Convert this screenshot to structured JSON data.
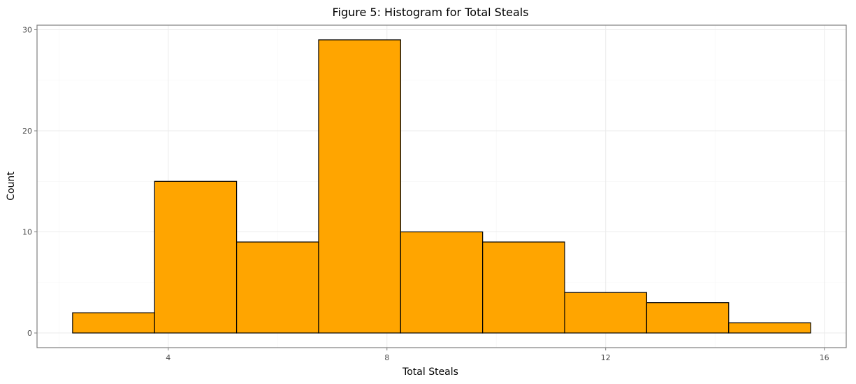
{
  "chart_data": {
    "type": "bar",
    "title": "Figure 5: Histogram for Total Steals",
    "xlabel": "Total Steals",
    "ylabel": "Count",
    "bar_color": "#ffa500",
    "bar_outline": "#000000",
    "xlim": [
      1.6,
      16.4
    ],
    "ylim": [
      -1.45,
      30.45
    ],
    "x_ticks": [
      4,
      8,
      12,
      16
    ],
    "y_ticks": [
      0,
      10,
      20,
      30
    ],
    "x_minor_ticks": [
      2,
      6,
      10,
      14
    ],
    "y_minor_ticks": [
      5,
      15,
      25
    ],
    "grid": true,
    "bins": [
      {
        "x0": 2.25,
        "x1": 3.75,
        "count": 2
      },
      {
        "x0": 3.75,
        "x1": 5.25,
        "count": 15
      },
      {
        "x0": 5.25,
        "x1": 6.75,
        "count": 9
      },
      {
        "x0": 6.75,
        "x1": 8.25,
        "count": 29
      },
      {
        "x0": 8.25,
        "x1": 9.75,
        "count": 10
      },
      {
        "x0": 9.75,
        "x1": 11.25,
        "count": 9
      },
      {
        "x0": 11.25,
        "x1": 12.75,
        "count": 4
      },
      {
        "x0": 12.75,
        "x1": 14.25,
        "count": 3
      },
      {
        "x0": 14.25,
        "x1": 15.75,
        "count": 1
      }
    ]
  }
}
